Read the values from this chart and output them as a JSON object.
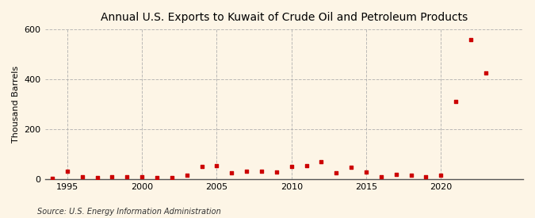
{
  "title": "Annual U.S. Exports to Kuwait of Crude Oil and Petroleum Products",
  "ylabel": "Thousand Barrels",
  "source": "Source: U.S. Energy Information Administration",
  "background_color": "#fdf5e6",
  "plot_bg_color": "#fdf5e6",
  "marker_color": "#cc0000",
  "grid_color": "#aaaaaa",
  "xlim": [
    1993.5,
    2025.5
  ],
  "ylim": [
    0,
    600
  ],
  "yticks": [
    0,
    200,
    400,
    600
  ],
  "xticks": [
    1995,
    2000,
    2005,
    2010,
    2015,
    2020
  ],
  "years": [
    1994,
    1995,
    1996,
    1997,
    1998,
    1999,
    2000,
    2001,
    2002,
    2003,
    2004,
    2005,
    2006,
    2007,
    2008,
    2009,
    2010,
    2011,
    2012,
    2013,
    2014,
    2015,
    2016,
    2017,
    2018,
    2019,
    2020,
    2021,
    2022,
    2023
  ],
  "values": [
    2,
    30,
    8,
    5,
    10,
    8,
    8,
    5,
    5,
    15,
    50,
    55,
    25,
    30,
    30,
    28,
    50,
    55,
    70,
    25,
    48,
    28,
    10,
    20,
    15,
    10,
    15,
    310,
    560,
    425
  ]
}
